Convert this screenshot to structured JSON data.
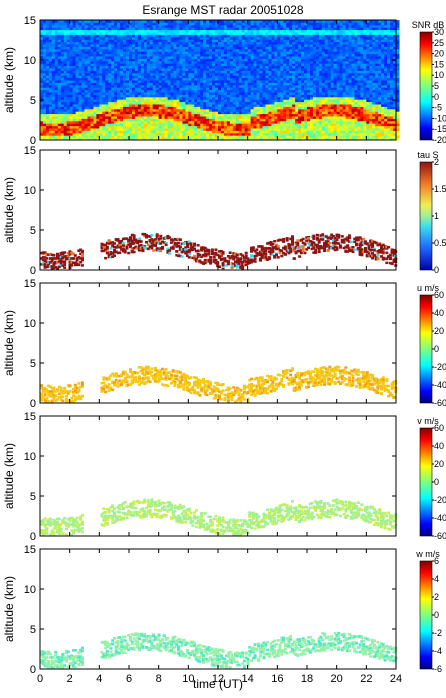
{
  "chart_data": {
    "title": "Esrange MST radar 20051028",
    "xlabel": "time (UT)",
    "xlim": [
      0,
      24
    ],
    "x_ticks": [
      "0",
      "2",
      "4",
      "6",
      "8",
      "10",
      "12",
      "14",
      "16",
      "18",
      "20",
      "22",
      "24"
    ],
    "panels": [
      {
        "type": "heatmap",
        "quantity": "SNR",
        "ylabel": "altitude (km)",
        "ylim": [
          0,
          15
        ],
        "y_ticks": [
          "0",
          "5",
          "10",
          "15"
        ],
        "colorbar": {
          "label": "SNR dB",
          "range": [
            -20,
            30
          ],
          "ticks": [
            "30",
            "25",
            "20",
            "15",
            "10",
            "5",
            "0",
            "-5",
            "-10",
            "-15",
            "-20"
          ]
        }
      },
      {
        "type": "heatmap",
        "quantity": "tau",
        "ylabel": "altitude (km)",
        "ylim": [
          0,
          15
        ],
        "y_ticks": [
          "0",
          "5",
          "10",
          "15"
        ],
        "colorbar": {
          "label": "tau S",
          "range": [
            0,
            2
          ],
          "ticks": [
            "2",
            "1.5",
            "1",
            "0.5",
            "0"
          ]
        }
      },
      {
        "type": "heatmap",
        "quantity": "u",
        "ylabel": "altitude (km)",
        "ylim": [
          0,
          15
        ],
        "y_ticks": [
          "0",
          "5",
          "10",
          "15"
        ],
        "colorbar": {
          "label": "u m/s",
          "range": [
            -60,
            60
          ],
          "ticks": [
            "60",
            "40",
            "20",
            "0",
            "-20",
            "-40",
            "-60"
          ]
        }
      },
      {
        "type": "heatmap",
        "quantity": "v",
        "ylabel": "altitude (km)",
        "ylim": [
          0,
          15
        ],
        "y_ticks": [
          "0",
          "5",
          "10",
          "15"
        ],
        "colorbar": {
          "label": "v m/s",
          "range": [
            -60,
            60
          ],
          "ticks": [
            "60",
            "40",
            "20",
            "0",
            "-20",
            "-40",
            "-60"
          ]
        }
      },
      {
        "type": "heatmap",
        "quantity": "w",
        "ylabel": "altitude (km)",
        "ylim": [
          0,
          15
        ],
        "y_ticks": [
          "0",
          "5",
          "10",
          "15"
        ],
        "colorbar": {
          "label": "w m/s",
          "range": [
            -6,
            6
          ],
          "ticks": [
            "6",
            "4",
            "2",
            "0",
            "-2",
            "-4",
            "-6"
          ]
        }
      }
    ]
  }
}
